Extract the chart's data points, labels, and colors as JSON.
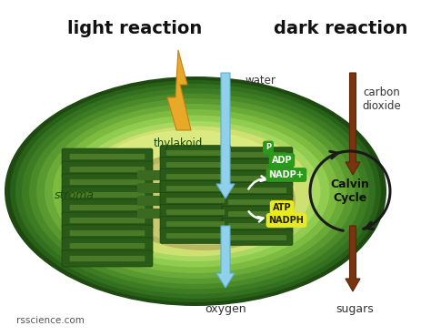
{
  "title_left": "light reaction",
  "title_right": "dark reaction",
  "watermark": "rsscience.com",
  "labels": {
    "stroma": "stroma",
    "thylakoid": "thylakoid",
    "water": "water",
    "oxygen": "oxygen",
    "carbon_dioxide": "carbon\ndioxide",
    "sugars": "sugars",
    "calvin_cycle": "Calvin\nCycle",
    "adp": "ADP",
    "nadp": "NADP+",
    "p": "P",
    "atp": "ATP",
    "nadph": "NADPH"
  },
  "colors": {
    "background": "#ffffff",
    "blue_arrow": "#90d0e8",
    "brown_arrow": "#7a3510",
    "green_badge": "#2a9a1a",
    "yellow_badge": "#eaea20",
    "lightning_fill": "#e8a828",
    "lightning_edge": "#c88010"
  },
  "figsize": [
    4.74,
    3.69
  ],
  "dpi": 100
}
